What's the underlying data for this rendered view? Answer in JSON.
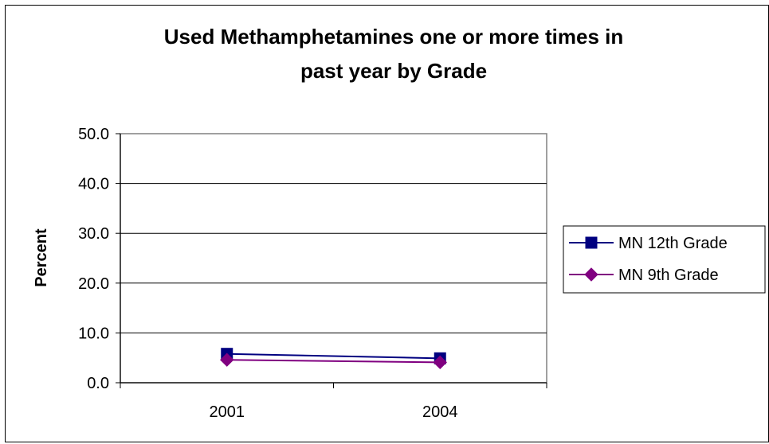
{
  "chart_data": {
    "type": "line",
    "title": "Used Methamphetamines one or more times in past year by Grade",
    "title_lines": [
      "Used Methamphetamines one or more times in",
      "past year by Grade"
    ],
    "xlabel": "",
    "ylabel": "Percent",
    "categories": [
      "2001",
      "2004"
    ],
    "ylim": [
      0,
      50
    ],
    "y_ticks": [
      "0.0",
      "10.0",
      "20.0",
      "30.0",
      "40.0",
      "50.0"
    ],
    "grid": true,
    "legend_position": "right",
    "series": [
      {
        "name": "MN 12th Grade",
        "values": [
          5.8,
          4.9
        ],
        "color": "#000080",
        "marker": "square"
      },
      {
        "name": "MN 9th Grade",
        "values": [
          4.6,
          4.1
        ],
        "color": "#800080",
        "marker": "diamond"
      }
    ]
  }
}
